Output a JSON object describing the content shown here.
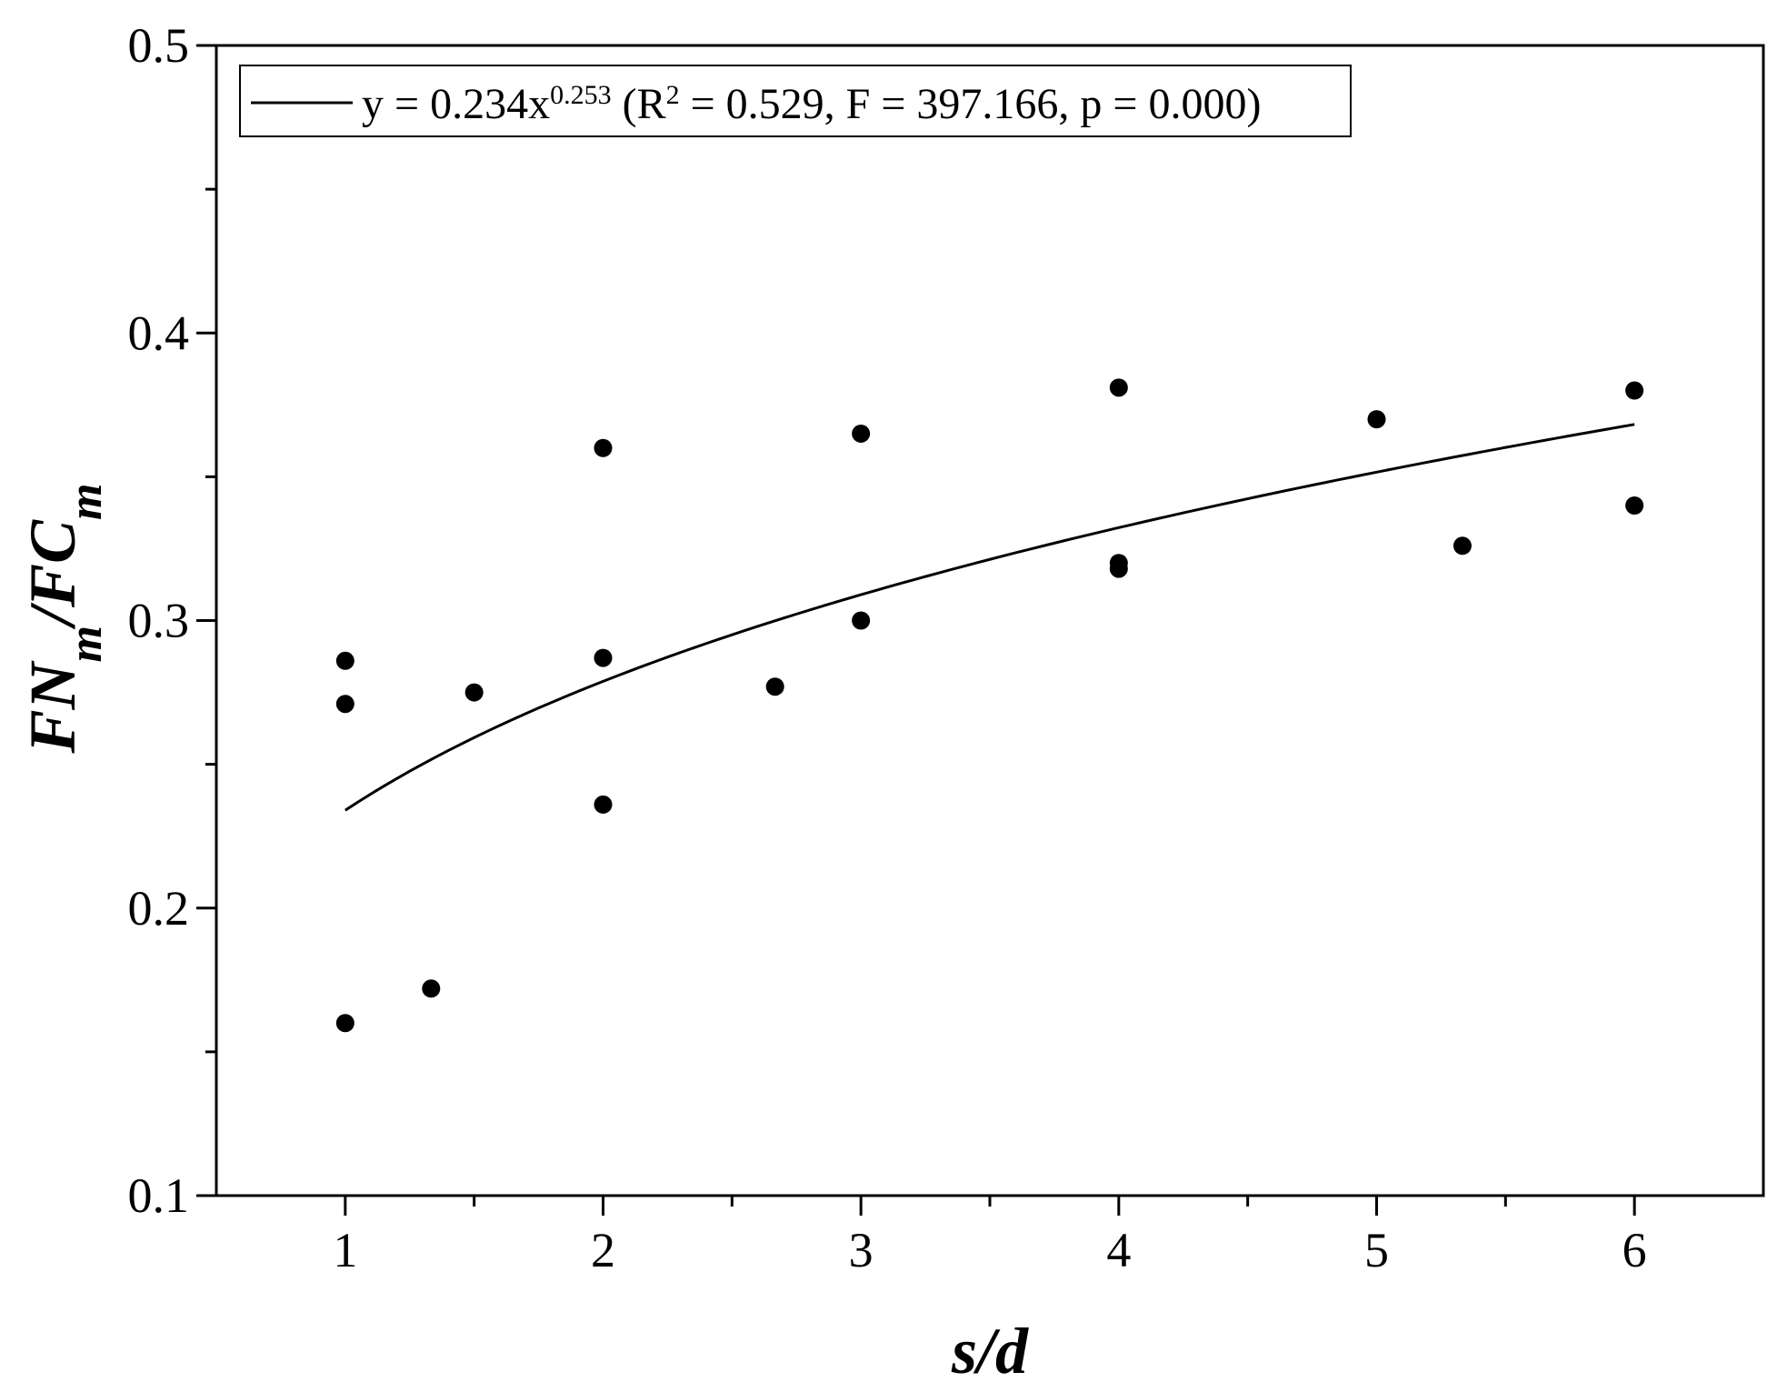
{
  "chart_data": {
    "type": "scatter",
    "title": "",
    "xlabel": {
      "parts": [
        {
          "text": "s/d",
          "sub": false
        }
      ]
    },
    "ylabel": {
      "parts": [
        {
          "text": "FN",
          "sub": false
        },
        {
          "text": "m",
          "sub": true
        },
        {
          "text": "/FC",
          "sub": false
        },
        {
          "text": "m",
          "sub": true
        }
      ]
    },
    "xlim": [
      0.5,
      6.5
    ],
    "ylim": [
      0.1,
      0.5
    ],
    "x_ticks": [
      1,
      2,
      3,
      4,
      5,
      6
    ],
    "x_tick_labels": [
      "1",
      "2",
      "3",
      "4",
      "5",
      "6"
    ],
    "y_ticks": [
      0.1,
      0.2,
      0.3,
      0.4,
      0.5
    ],
    "y_tick_labels": [
      "0.1",
      "0.2",
      "0.3",
      "0.4",
      "0.5"
    ],
    "grid": false,
    "legend_position": "top-left",
    "legend": {
      "parts": [
        {
          "text": "y = 0.234x",
          "sup": false
        },
        {
          "text": "0.253",
          "sup": true
        },
        {
          "text": " (R",
          "sup": false
        },
        {
          "text": "2",
          "sup": true
        },
        {
          "text": " = 0.529, F = 397.166, p = 0.000)",
          "sup": false
        }
      ]
    },
    "fit": {
      "a": 0.234,
      "b": 0.253,
      "x_range": [
        1,
        6
      ]
    },
    "points": [
      {
        "x": 1,
        "y": 0.286
      },
      {
        "x": 1,
        "y": 0.271
      },
      {
        "x": 1,
        "y": 0.16
      },
      {
        "x": 1.333,
        "y": 0.172
      },
      {
        "x": 1.5,
        "y": 0.275
      },
      {
        "x": 2,
        "y": 0.36
      },
      {
        "x": 2,
        "y": 0.287
      },
      {
        "x": 2,
        "y": 0.236
      },
      {
        "x": 2.667,
        "y": 0.277
      },
      {
        "x": 3,
        "y": 0.365
      },
      {
        "x": 3,
        "y": 0.3
      },
      {
        "x": 4,
        "y": 0.381
      },
      {
        "x": 4,
        "y": 0.32
      },
      {
        "x": 4,
        "y": 0.318
      },
      {
        "x": 5,
        "y": 0.37
      },
      {
        "x": 5.333,
        "y": 0.326
      },
      {
        "x": 6,
        "y": 0.38
      },
      {
        "x": 6,
        "y": 0.34
      }
    ],
    "colors": {
      "marker": "#000000",
      "line": "#000000",
      "background": "#ffffff"
    }
  }
}
